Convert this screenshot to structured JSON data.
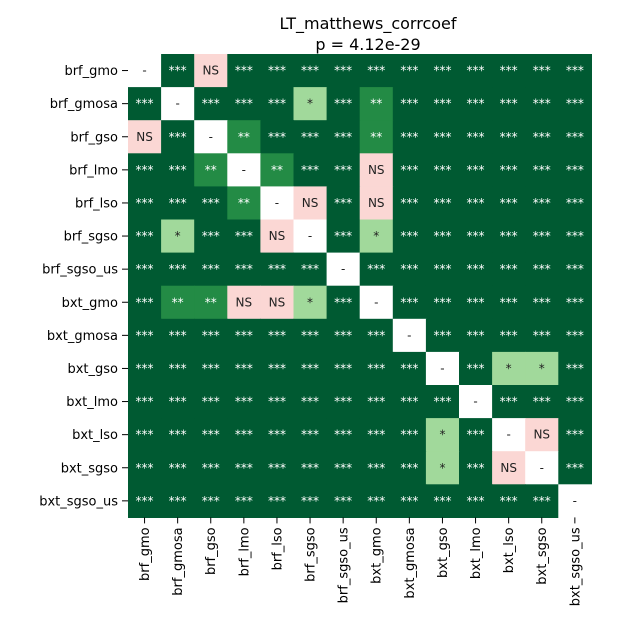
{
  "chart_data": {
    "type": "heatmap",
    "title": "LT_matthews_corrcoef",
    "subtitle": "p = 4.12e-29",
    "rows": [
      "brf_gmo",
      "brf_gmosa",
      "brf_gso",
      "brf_lmo",
      "brf_lso",
      "brf_sgso",
      "brf_sgso_us",
      "bxt_gmo",
      "bxt_gmosa",
      "bxt_gso",
      "bxt_lmo",
      "bxt_lso",
      "bxt_sgso",
      "bxt_sgso_us"
    ],
    "cols": [
      "brf_gmo",
      "brf_gmosa",
      "brf_gso",
      "brf_lmo",
      "brf_lso",
      "brf_sgso",
      "brf_sgso_us",
      "bxt_gmo",
      "bxt_gmosa",
      "bxt_gso",
      "bxt_lmo",
      "bxt_lso",
      "bxt_sgso",
      "bxt_sgso_us"
    ],
    "cells": [
      [
        "-",
        "***",
        "NS",
        "***",
        "***",
        "***",
        "***",
        "***",
        "***",
        "***",
        "***",
        "***",
        "***",
        "***"
      ],
      [
        "***",
        "-",
        "***",
        "***",
        "***",
        "*",
        "***",
        "**",
        "***",
        "***",
        "***",
        "***",
        "***",
        "***"
      ],
      [
        "NS",
        "***",
        "-",
        "**",
        "***",
        "***",
        "***",
        "**",
        "***",
        "***",
        "***",
        "***",
        "***",
        "***"
      ],
      [
        "***",
        "***",
        "**",
        "-",
        "**",
        "***",
        "***",
        "NS",
        "***",
        "***",
        "***",
        "***",
        "***",
        "***"
      ],
      [
        "***",
        "***",
        "***",
        "**",
        "-",
        "NS",
        "***",
        "NS",
        "***",
        "***",
        "***",
        "***",
        "***",
        "***"
      ],
      [
        "***",
        "*",
        "***",
        "***",
        "NS",
        "-",
        "***",
        "*",
        "***",
        "***",
        "***",
        "***",
        "***",
        "***"
      ],
      [
        "***",
        "***",
        "***",
        "***",
        "***",
        "***",
        "-",
        "***",
        "***",
        "***",
        "***",
        "***",
        "***",
        "***"
      ],
      [
        "***",
        "**",
        "**",
        "NS",
        "NS",
        "*",
        "***",
        "-",
        "***",
        "***",
        "***",
        "***",
        "***",
        "***"
      ],
      [
        "***",
        "***",
        "***",
        "***",
        "***",
        "***",
        "***",
        "***",
        "-",
        "***",
        "***",
        "***",
        "***",
        "***"
      ],
      [
        "***",
        "***",
        "***",
        "***",
        "***",
        "***",
        "***",
        "***",
        "***",
        "-",
        "***",
        "*",
        "*",
        "***"
      ],
      [
        "***",
        "***",
        "***",
        "***",
        "***",
        "***",
        "***",
        "***",
        "***",
        "***",
        "-",
        "***",
        "***",
        "***"
      ],
      [
        "***",
        "***",
        "***",
        "***",
        "***",
        "***",
        "***",
        "***",
        "***",
        "*",
        "***",
        "-",
        "NS",
        "***"
      ],
      [
        "***",
        "***",
        "***",
        "***",
        "***",
        "***",
        "***",
        "***",
        "***",
        "*",
        "***",
        "NS",
        "-",
        "***"
      ],
      [
        "***",
        "***",
        "***",
        "***",
        "***",
        "***",
        "***",
        "***",
        "***",
        "***",
        "***",
        "***",
        "***",
        "-"
      ]
    ],
    "legend": {
      "***": "#005a32",
      "**": "#238b45",
      "*": "#a1d99b",
      "NS": "#fbd7d4",
      "-": "#ffffff"
    },
    "label_colors": {
      "***": "#ffffff",
      "**": "#ffffff",
      "*": "#222222",
      "NS": "#222222",
      "-": "#222222"
    },
    "grid": false,
    "colorbar": false
  }
}
